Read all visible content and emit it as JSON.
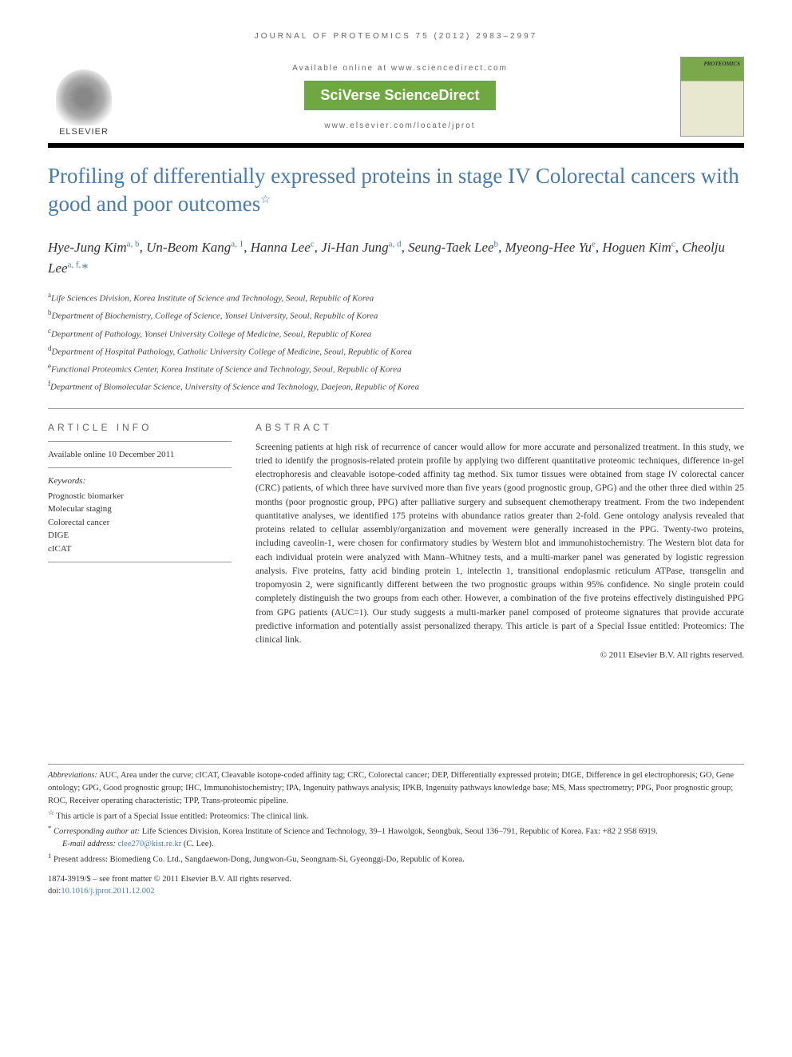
{
  "running_header": "JOURNAL OF PROTEOMICS 75 (2012) 2983–2997",
  "header": {
    "available_online": "Available online at www.sciencedirect.com",
    "sciverse": "SciVerse ScienceDirect",
    "journal_url": "www.elsevier.com/locate/jprot",
    "elsevier": "ELSEVIER",
    "cover_title": "PROTEOMICS"
  },
  "title": "Profiling of differentially expressed proteins in stage IV Colorectal cancers with good and poor outcomes",
  "title_star": "☆",
  "authors_html": "Hye-Jung Kim<sup>a, b</sup>, Un-Beom Kang<sup>a, 1</sup>, Hanna Lee<sup>c</sup>, Ji-Han Jung<sup>a, d</sup>, Seung-Taek Lee<sup>b</sup>, Myeong-Hee Yu<sup>e</sup>, Hoguen Kim<sup>c</sup>, Cheolju Lee<sup>a, f,</sup><span class='corresp'>*</span>",
  "affiliations": [
    {
      "sup": "a",
      "text": "Life Sciences Division, Korea Institute of Science and Technology, Seoul, Republic of Korea"
    },
    {
      "sup": "b",
      "text": "Department of Biochemistry, College of Science, Yonsei University, Seoul, Republic of Korea"
    },
    {
      "sup": "c",
      "text": "Department of Pathology, Yonsei University College of Medicine, Seoul, Republic of Korea"
    },
    {
      "sup": "d",
      "text": "Department of Hospital Pathology, Catholic University College of Medicine, Seoul, Republic of Korea"
    },
    {
      "sup": "e",
      "text": "Functional Proteomics Center, Korea Institute of Science and Technology, Seoul, Republic of Korea"
    },
    {
      "sup": "f",
      "text": "Department of Biomolecular Science, University of Science and Technology, Daejeon, Republic of Korea"
    }
  ],
  "article_info": {
    "heading": "ARTICLE INFO",
    "available": "Available online 10 December 2011",
    "keywords_label": "Keywords:",
    "keywords": [
      "Prognostic biomarker",
      "Molecular staging",
      "Colorectal cancer",
      "DIGE",
      "cICAT"
    ]
  },
  "abstract": {
    "heading": "ABSTRACT",
    "text": "Screening patients at high risk of recurrence of cancer would allow for more accurate and personalized treatment. In this study, we tried to identify the prognosis-related protein profile by applying two different quantitative proteomic techniques, difference in-gel electrophoresis and cleavable isotope-coded affinity tag method. Six tumor tissues were obtained from stage IV colorectal cancer (CRC) patients, of which three have survived more than five years (good prognostic group, GPG) and the other three died within 25 months (poor prognostic group, PPG) after palliative surgery and subsequent chemotherapy treatment. From the two independent quantitative analyses, we identified 175 proteins with abundance ratios greater than 2-fold. Gene ontology analysis revealed that proteins related to cellular assembly/organization and movement were generally increased in the PPG. Twenty-two proteins, including caveolin-1, were chosen for confirmatory studies by Western blot and immunohistochemistry. The Western blot data for each individual protein were analyzed with Mann–Whitney tests, and a multi-marker panel was generated by logistic regression analysis. Five proteins, fatty acid binding protein 1, intelectin 1, transitional endoplasmic reticulum ATPase, transgelin and tropomyosin 2, were significantly different between the two prognostic groups within 95% confidence. No single protein could completely distinguish the two groups from each other. However, a combination of the five proteins effectively distinguished PPG from GPG patients (AUC=1). Our study suggests a multi-marker panel composed of proteome signatures that provide accurate predictive information and potentially assist personalized therapy. This article is part of a Special Issue entitled: Proteomics: The clinical link.",
    "copyright": "© 2011 Elsevier B.V. All rights reserved."
  },
  "footnotes": {
    "abbrev_label": "Abbreviations:",
    "abbrev_text": " AUC, Area under the curve; cICAT, Cleavable isotope-coded affinity tag; CRC, Colorectal cancer; DEP, Differentially expressed protein; DIGE, Difference in gel electrophoresis; GO, Gene ontology; GPG, Good prognostic group; IHC, Immunohistochemistry; IPA, Ingenuity pathways analysis; IPKB, Ingenuity pathways knowledge base; MS, Mass spectrometry; PPG, Poor prognostic group; ROC, Receiver operating characteristic; TPP, Trans-proteomic pipeline.",
    "star_note": "This article is part of a Special Issue entitled: Proteomics: The clinical link.",
    "corresp_label": "Corresponding author at:",
    "corresp_text": " Life Sciences Division, Korea Institute of Science and Technology, 39–1 Hawolgok, Seongbuk, Seoul 136–791, Republic of Korea. Fax: +82 2 958 6919.",
    "email_label": "E-mail address:",
    "email": "clee270@kist.re.kr",
    "email_suffix": " (C. Lee).",
    "present_addr": "Present address: Biomedieng Co. Ltd., Sangdaewon-Dong, Jungwon-Gu, Seongnam-Si, Gyeonggi-Do, Republic of Korea."
  },
  "footer": {
    "issn_line": "1874-3919/$ – see front matter © 2011 Elsevier B.V. All rights reserved.",
    "doi_label": "doi:",
    "doi": "10.1016/j.jprot.2011.12.002"
  },
  "colors": {
    "title_color": "#4a7ba8",
    "sciverse_bg": "#6fa843",
    "link_color": "#4a7ba8",
    "text_color": "#333333"
  }
}
